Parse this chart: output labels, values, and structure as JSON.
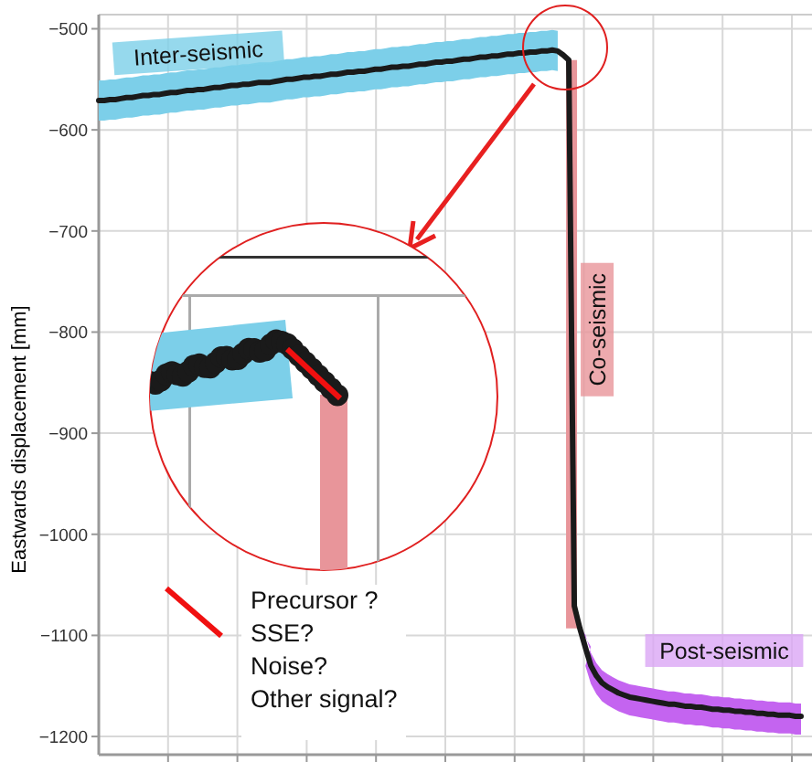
{
  "chart_data": {
    "type": "line",
    "ylabel": "Eastwards displacement [mm]",
    "categories": [
      null,
      null,
      null,
      null,
      null,
      null,
      null,
      null,
      null,
      null,
      null,
      null,
      null,
      null,
      null,
      null,
      null,
      null,
      null,
      null,
      null,
      null,
      null,
      null,
      null,
      null,
      null,
      null,
      null,
      null,
      null,
      null,
      null,
      null,
      null,
      null,
      null,
      null,
      null,
      null,
      null,
      null,
      null,
      null,
      null,
      null,
      null,
      null,
      null,
      null,
      null,
      null,
      null,
      null,
      null,
      null,
      null,
      null,
      null,
      null,
      null,
      null,
      null,
      null,
      null,
      null,
      null,
      null,
      null,
      null,
      null,
      null,
      null,
      null,
      null,
      null,
      null,
      null,
      null,
      null,
      null,
      null,
      null,
      null,
      null,
      null,
      null,
      null,
      null,
      null,
      null,
      null,
      null,
      null,
      null,
      null,
      null,
      null,
      null,
      null,
      null,
      null,
      null,
      null,
      null,
      null,
      null,
      null,
      null,
      null,
      null,
      null,
      null,
      null,
      null,
      null,
      null,
      null,
      null,
      null,
      null,
      null,
      null,
      null,
      null,
      null,
      null,
      null
    ],
    "ylim": [
      -1218,
      -486
    ],
    "yticks": [
      {
        "value": -1200,
        "label": "−1200"
      },
      {
        "value": -1100,
        "label": "−1100"
      },
      {
        "value": -1000,
        "label": "−1000"
      },
      {
        "value": -900,
        "label": "−900"
      },
      {
        "value": -800,
        "label": "−800"
      },
      {
        "value": -700,
        "label": "−700"
      },
      {
        "value": -600,
        "label": "−600"
      },
      {
        "value": -500,
        "label": "−500"
      }
    ],
    "tick_labels": "y",
    "grid": true,
    "line_style": "solid",
    "series": [
      {
        "color": "#1a1a1a",
        "values": [
          -571,
          -571,
          -570,
          -570,
          -569,
          -568,
          -568,
          -567,
          -566,
          -566,
          -565,
          -565,
          -564,
          -563,
          -563,
          -562,
          -561,
          -561,
          -560,
          -560,
          -559,
          -558,
          -558,
          -557,
          -556,
          -556,
          -555,
          -555,
          -554,
          -553,
          -553,
          -553,
          -552,
          -551,
          -550,
          -550,
          -549,
          -548,
          -548,
          -547,
          -547,
          -546,
          -545,
          -545,
          -544,
          -543,
          -543,
          -542,
          -542,
          -541,
          -540,
          -540,
          -539,
          -538,
          -538,
          -537,
          -537,
          -536,
          -535,
          -535,
          -534,
          -533,
          -533,
          -532,
          -532,
          -531,
          -530,
          -530,
          -529,
          -528,
          -528,
          -527,
          -527,
          -526,
          -525,
          -525,
          -524,
          -524,
          -523,
          -523,
          -522,
          -522,
          -521,
          -522,
          -526,
          -531,
          -1071,
          -1093,
          -1112,
          -1130,
          -1140,
          -1147,
          -1151,
          -1154,
          -1157,
          -1159,
          -1161,
          -1162,
          -1163,
          -1164,
          -1165,
          -1166,
          -1167,
          -1168,
          -1168,
          -1169,
          -1170,
          -1170,
          -1171,
          -1171,
          -1172,
          -1173,
          -1173,
          -1174,
          -1174,
          -1175,
          -1175,
          -1176,
          -1176,
          -1177,
          -1177,
          -1178,
          -1178,
          -1179,
          -1179,
          -1179,
          -1180,
          -1180
        ]
      }
    ],
    "annotations": [
      "Inter-seismic",
      "Co-seismic",
      "Post-seismic",
      "Precursor ?",
      "SSE?",
      "Noise?",
      "Other signal?"
    ]
  }
}
